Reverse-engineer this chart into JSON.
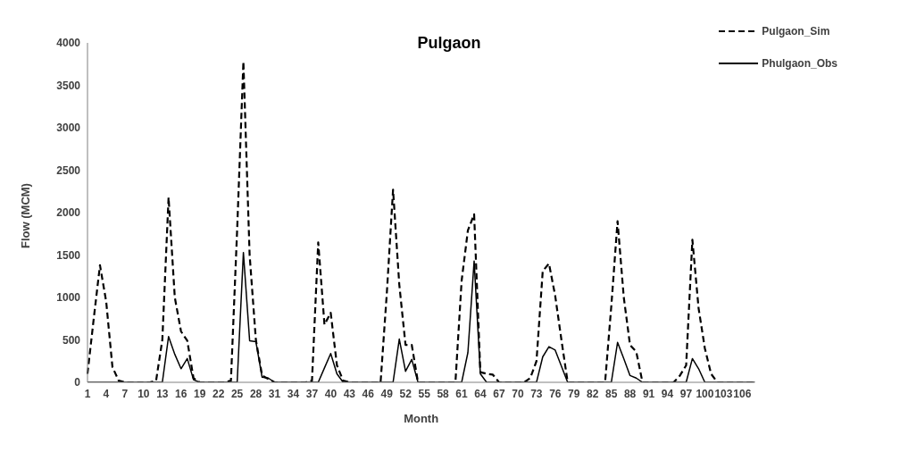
{
  "chart_data": {
    "type": "line",
    "title": "Pulgaon",
    "xlabel": "Month",
    "ylabel": "Flow (MCM)",
    "categories": [
      "1",
      null,
      null,
      "4",
      null,
      null,
      "7",
      null,
      null,
      "10",
      null,
      null,
      "13",
      null,
      null,
      "16",
      null,
      null,
      "19",
      null,
      null,
      "22",
      null,
      null,
      "25",
      null,
      null,
      "28",
      null,
      null,
      "31",
      null,
      null,
      "34",
      null,
      null,
      "37",
      null,
      null,
      "40",
      null,
      null,
      "43",
      null,
      null,
      "46",
      null,
      null,
      "49",
      null,
      null,
      "52",
      null,
      null,
      "55",
      null,
      null,
      "58",
      null,
      null,
      "61",
      null,
      null,
      "64",
      null,
      null,
      "67",
      null,
      null,
      "70",
      null,
      null,
      "73",
      null,
      null,
      "76",
      null,
      null,
      "79",
      null,
      null,
      "82",
      null,
      null,
      "85",
      null,
      null,
      "88",
      null,
      null,
      "91",
      null,
      null,
      "94",
      null,
      null,
      "97",
      null,
      null,
      "100",
      null,
      null,
      "103",
      null,
      null,
      "106",
      null,
      null
    ],
    "series": [
      {
        "name": "Pulgaon_Sim",
        "color": "#000000",
        "line_style": "dashed",
        "values": [
          100,
          750,
          1380,
          950,
          180,
          20,
          0,
          0,
          0,
          0,
          0,
          20,
          500,
          2180,
          1000,
          600,
          490,
          50,
          0,
          0,
          0,
          0,
          0,
          20,
          1800,
          3780,
          1500,
          500,
          80,
          40,
          0,
          0,
          0,
          0,
          0,
          0,
          20,
          1650,
          680,
          820,
          200,
          20,
          0,
          0,
          0,
          0,
          0,
          0,
          1050,
          2270,
          1150,
          440,
          440,
          0,
          0,
          0,
          0,
          0,
          0,
          0,
          1200,
          1790,
          1980,
          120,
          100,
          90,
          0,
          0,
          0,
          0,
          0,
          50,
          250,
          1310,
          1400,
          1020,
          500,
          0,
          0,
          0,
          0,
          0,
          0,
          0,
          900,
          1900,
          1000,
          440,
          360,
          0,
          0,
          0,
          0,
          0,
          0,
          80,
          200,
          1680,
          870,
          400,
          100,
          0,
          0,
          0,
          0,
          0,
          0,
          0
        ]
      },
      {
        "name": "Phulgaon_Obs",
        "color": "#000000",
        "line_style": "solid",
        "values": [
          0,
          0,
          0,
          0,
          0,
          0,
          0,
          0,
          0,
          0,
          0,
          0,
          0,
          540,
          330,
          160,
          280,
          30,
          0,
          0,
          0,
          0,
          0,
          0,
          0,
          1530,
          490,
          480,
          60,
          50,
          0,
          0,
          0,
          0,
          0,
          0,
          0,
          0,
          170,
          340,
          100,
          0,
          0,
          0,
          0,
          0,
          0,
          0,
          0,
          0,
          510,
          130,
          270,
          0,
          0,
          0,
          0,
          0,
          0,
          0,
          0,
          350,
          1430,
          100,
          0,
          0,
          0,
          0,
          0,
          0,
          0,
          0,
          0,
          300,
          420,
          380,
          190,
          0,
          0,
          0,
          0,
          0,
          0,
          0,
          0,
          470,
          280,
          80,
          50,
          0,
          0,
          0,
          0,
          0,
          0,
          0,
          0,
          280,
          160,
          0,
          0,
          0,
          0,
          0,
          0,
          0,
          0,
          0
        ]
      }
    ],
    "ylim": [
      0,
      4000
    ],
    "yticks": [
      0,
      500,
      1000,
      1500,
      2000,
      2500,
      3000,
      3500,
      4000
    ],
    "grid": false,
    "legend": "top right",
    "marker": "none"
  }
}
